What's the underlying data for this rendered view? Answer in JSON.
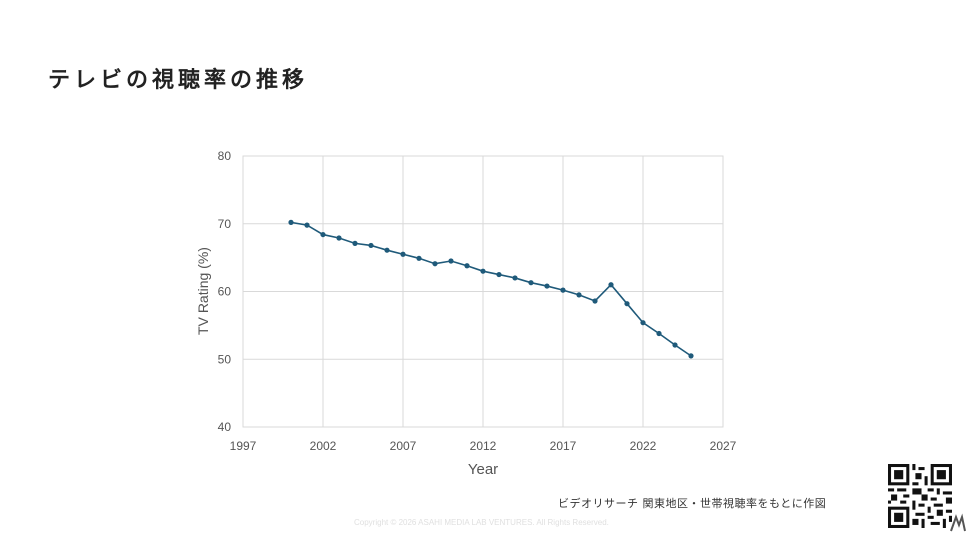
{
  "page": {
    "title": "テレビの視聴率の推移",
    "source_note": "ビデオリサーチ 関東地区・世帯視聴率をもとに作図",
    "copyright": "Copyright © 2026 ASAHI MEDIA LAB VENTURES. All Rights Reserved."
  },
  "chart_data": {
    "type": "line",
    "title": "",
    "xlabel": "Year",
    "ylabel": "TV Rating (%)",
    "xlim": [
      1997,
      2027
    ],
    "ylim": [
      40,
      80
    ],
    "x_ticks": [
      1997,
      2002,
      2007,
      2012,
      2017,
      2022,
      2027
    ],
    "y_ticks": [
      40,
      50,
      60,
      70,
      80
    ],
    "grid": true,
    "legend": "none",
    "series": [
      {
        "color": "#1f5a7a",
        "x": [
          2000,
          2001,
          2002,
          2003,
          2004,
          2005,
          2006,
          2007,
          2008,
          2009,
          2010,
          2011,
          2012,
          2013,
          2014,
          2015,
          2016,
          2017,
          2018,
          2019,
          2020,
          2021,
          2022,
          2023,
          2024,
          2025
        ],
        "y": [
          70.2,
          69.8,
          68.4,
          67.9,
          67.1,
          66.8,
          66.1,
          65.5,
          64.9,
          64.1,
          64.5,
          63.8,
          63.0,
          62.5,
          62.0,
          61.3,
          60.8,
          60.2,
          59.5,
          58.6,
          61.0,
          58.2,
          55.4,
          53.8,
          52.1,
          50.5
        ]
      }
    ]
  },
  "icons": {
    "qr": "qr-code",
    "logo": "brand-logo-mark"
  }
}
